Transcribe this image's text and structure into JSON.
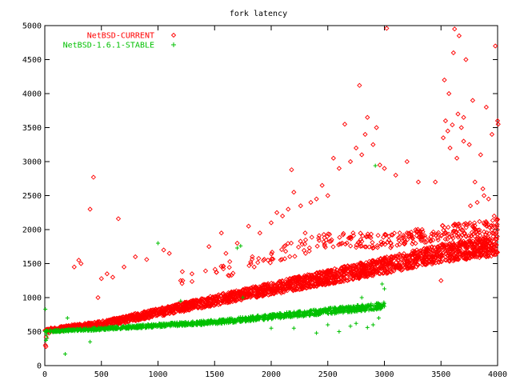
{
  "chart_data": {
    "type": "scatter",
    "title": "fork latency",
    "xlabel": "",
    "ylabel": "",
    "xlim": [
      0,
      4000
    ],
    "ylim": [
      0,
      5000
    ],
    "x_ticks": [
      0,
      500,
      1000,
      1500,
      2000,
      2500,
      3000,
      3500,
      4000
    ],
    "y_ticks": [
      0,
      500,
      1000,
      1500,
      2000,
      2500,
      3000,
      3500,
      4000,
      4500,
      5000
    ],
    "grid": false,
    "legend_position": "top-left",
    "series": [
      {
        "name": "NetBSD-CURRENT",
        "marker": "diamond",
        "color": "#ff0000",
        "trend": [
          [
            0,
            520
          ],
          [
            500,
            610
          ],
          [
            1000,
            780
          ],
          [
            1500,
            960
          ],
          [
            2000,
            1130
          ],
          [
            2500,
            1300
          ],
          [
            3000,
            1470
          ],
          [
            3500,
            1650
          ],
          [
            4000,
            1770
          ]
        ],
        "upper_band": [
          [
            1200,
            1300
          ],
          [
            1500,
            1350
          ],
          [
            2000,
            1620
          ],
          [
            2500,
            1850
          ],
          [
            3000,
            1830
          ],
          [
            3500,
            1950
          ],
          [
            4000,
            2050
          ]
        ],
        "outliers": [
          [
            5,
            300
          ],
          [
            10,
            280
          ],
          [
            12,
            420
          ],
          [
            40,
            480
          ],
          [
            260,
            1450
          ],
          [
            300,
            1550
          ],
          [
            320,
            1500
          ],
          [
            400,
            2300
          ],
          [
            430,
            2770
          ],
          [
            470,
            1000
          ],
          [
            500,
            1280
          ],
          [
            550,
            1350
          ],
          [
            600,
            1300
          ],
          [
            650,
            2160
          ],
          [
            700,
            1450
          ],
          [
            800,
            1600
          ],
          [
            900,
            1560
          ],
          [
            1050,
            1700
          ],
          [
            1100,
            1650
          ],
          [
            1200,
            1250
          ],
          [
            1300,
            1350
          ],
          [
            1450,
            1750
          ],
          [
            1560,
            1950
          ],
          [
            1600,
            1650
          ],
          [
            1700,
            1800
          ],
          [
            1800,
            2050
          ],
          [
            1850,
            1450
          ],
          [
            1900,
            1950
          ],
          [
            2000,
            2100
          ],
          [
            2050,
            2250
          ],
          [
            2100,
            2200
          ],
          [
            2150,
            2300
          ],
          [
            2180,
            2880
          ],
          [
            2200,
            2550
          ],
          [
            2260,
            2350
          ],
          [
            2300,
            1950
          ],
          [
            2350,
            2400
          ],
          [
            2400,
            2450
          ],
          [
            2450,
            2650
          ],
          [
            2500,
            2500
          ],
          [
            2550,
            3050
          ],
          [
            2600,
            2900
          ],
          [
            2650,
            3550
          ],
          [
            2700,
            3000
          ],
          [
            2750,
            3200
          ],
          [
            2780,
            4120
          ],
          [
            2800,
            3100
          ],
          [
            2830,
            3400
          ],
          [
            2850,
            3650
          ],
          [
            2900,
            3250
          ],
          [
            2930,
            3500
          ],
          [
            2960,
            2950
          ],
          [
            3000,
            2900
          ],
          [
            3020,
            4960
          ],
          [
            3100,
            2800
          ],
          [
            3200,
            3000
          ],
          [
            3300,
            2700
          ],
          [
            3450,
            2700
          ],
          [
            3500,
            1250
          ],
          [
            3520,
            3350
          ],
          [
            3540,
            3600
          ],
          [
            3560,
            3450
          ],
          [
            3580,
            3200
          ],
          [
            3600,
            3540
          ],
          [
            3620,
            4950
          ],
          [
            3650,
            3700
          ],
          [
            3660,
            4850
          ],
          [
            3680,
            3500
          ],
          [
            3700,
            3300
          ],
          [
            3720,
            4500
          ],
          [
            3750,
            3250
          ],
          [
            3780,
            3900
          ],
          [
            3800,
            2700
          ],
          [
            3820,
            2400
          ],
          [
            3850,
            3100
          ],
          [
            3880,
            2500
          ],
          [
            3900,
            3800
          ],
          [
            3950,
            3400
          ],
          [
            3980,
            4700
          ],
          [
            4000,
            3600
          ],
          [
            4005,
            3550
          ],
          [
            3530,
            4200
          ],
          [
            3570,
            4000
          ],
          [
            3610,
            4600
          ],
          [
            3640,
            3050
          ],
          [
            3700,
            3650
          ],
          [
            3760,
            2350
          ],
          [
            3870,
            2600
          ],
          [
            3920,
            2450
          ],
          [
            3970,
            2200
          ],
          [
            4000,
            2150
          ]
        ]
      },
      {
        "name": "NetBSD-1.6.1-STABLE",
        "marker": "plus",
        "color": "#00c000",
        "x_range": [
          0,
          3000
        ],
        "trend": [
          [
            0,
            500
          ],
          [
            500,
            540
          ],
          [
            1000,
            590
          ],
          [
            1500,
            640
          ],
          [
            2000,
            720
          ],
          [
            2500,
            800
          ],
          [
            3000,
            880
          ]
        ],
        "outliers": [
          [
            5,
            830
          ],
          [
            10,
            370
          ],
          [
            15,
            450
          ],
          [
            20,
            400
          ],
          [
            180,
            170
          ],
          [
            200,
            700
          ],
          [
            400,
            350
          ],
          [
            1000,
            1800
          ],
          [
            1200,
            950
          ],
          [
            1700,
            1730
          ],
          [
            1730,
            1760
          ],
          [
            1750,
            1000
          ],
          [
            2000,
            550
          ],
          [
            2200,
            550
          ],
          [
            2400,
            480
          ],
          [
            2500,
            600
          ],
          [
            2600,
            500
          ],
          [
            2700,
            580
          ],
          [
            2750,
            620
          ],
          [
            2800,
            1000
          ],
          [
            2850,
            560
          ],
          [
            2900,
            600
          ],
          [
            2920,
            2940
          ],
          [
            2950,
            700
          ],
          [
            2980,
            1200
          ],
          [
            3000,
            1130
          ],
          [
            3000,
            870
          ]
        ]
      }
    ]
  }
}
